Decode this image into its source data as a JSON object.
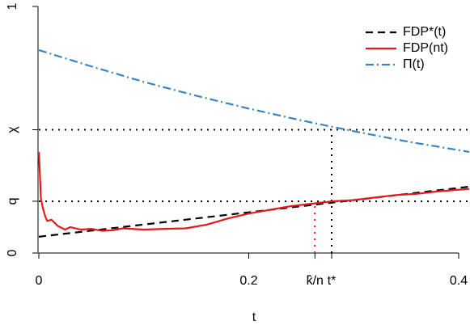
{
  "chart_data": {
    "type": "line",
    "x_label": "t",
    "xlim": [
      0,
      0.41
    ],
    "ylim": [
      0,
      1
    ],
    "xticks": [
      0,
      0.2,
      {
        "value": 0.263,
        "label": "k̂/n",
        "color": "#e31a1c"
      },
      {
        "value": 0.279,
        "label": "t*",
        "color": "#000000"
      },
      0.4
    ],
    "yticks": [
      0,
      {
        "value": 0.21,
        "label": "q",
        "color": "#000000"
      },
      {
        "value": 0.5,
        "label": "χ",
        "color": "#000000"
      },
      1
    ],
    "legend": "top-right",
    "series": [
      {
        "name": "FDP*(t)",
        "color": "#000000",
        "dash": "9,6",
        "x": [
          0,
          0.41
        ],
        "values": [
          0.066,
          0.269
        ]
      },
      {
        "name": "FDP(nt)",
        "color": "#e31a1c",
        "dash": "none",
        "x": [
          0,
          0.001,
          0.002,
          0.004,
          0.006,
          0.008,
          0.012,
          0.018,
          0.025,
          0.03,
          0.04,
          0.05,
          0.06,
          0.07,
          0.08,
          0.1,
          0.12,
          0.14,
          0.16,
          0.18,
          0.2,
          0.22,
          0.24,
          0.26,
          0.28,
          0.3,
          0.32,
          0.34,
          0.36,
          0.38,
          0.41
        ],
        "values": [
          0.41,
          0.32,
          0.22,
          0.18,
          0.15,
          0.13,
          0.135,
          0.11,
          0.095,
          0.105,
          0.095,
          0.098,
          0.09,
          0.092,
          0.1,
          0.095,
          0.098,
          0.1,
          0.115,
          0.14,
          0.16,
          0.175,
          0.19,
          0.2,
          0.21,
          0.215,
          0.225,
          0.235,
          0.24,
          0.25,
          0.26
        ]
      },
      {
        "name": "Π(t)",
        "color": "#3b84c0",
        "dash": "10,4,2,4",
        "x": [
          0,
          0.05,
          0.1,
          0.15,
          0.2,
          0.25,
          0.3,
          0.35,
          0.41
        ],
        "values": [
          0.823,
          0.757,
          0.694,
          0.638,
          0.586,
          0.538,
          0.494,
          0.453,
          0.41
        ]
      }
    ]
  }
}
